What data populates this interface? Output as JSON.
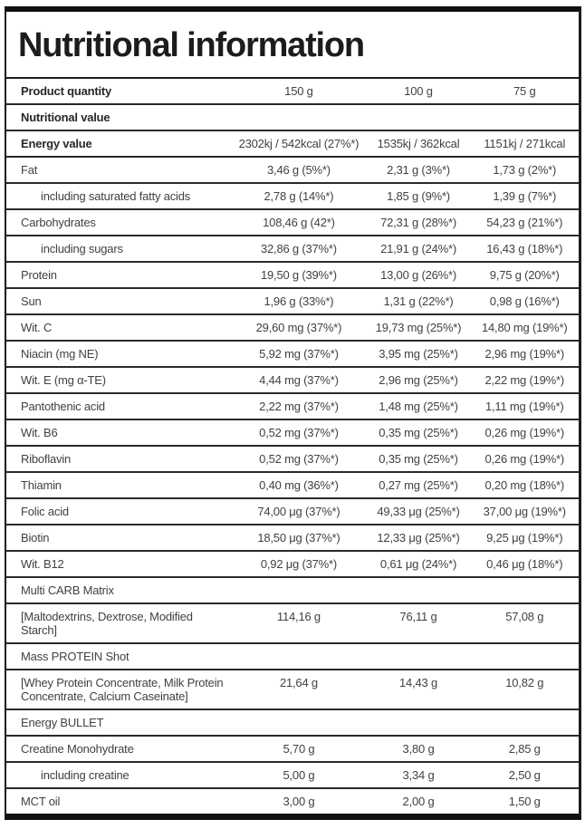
{
  "header": {
    "title": "Nutritional information"
  },
  "table": {
    "product_quantity": {
      "label": "Product quantity",
      "values": [
        "150 g",
        "100 g",
        "75 g"
      ]
    },
    "rows": [
      {
        "label": "Nutritional value",
        "bold": true,
        "values": [
          "",
          "",
          ""
        ]
      },
      {
        "label": "Energy value",
        "bold": true,
        "values": [
          "2302kj / 542kcal (27%*)",
          "1535kj / 362kcal",
          "1151kj / 271kcal"
        ]
      },
      {
        "label": "Fat",
        "values": [
          "3,46 g (5%*)",
          "2,31 g (3%*)",
          "1,73 g (2%*)"
        ]
      },
      {
        "label": "including saturated fatty acids",
        "indent": true,
        "values": [
          "2,78 g (14%*)",
          "1,85 g (9%*)",
          "1,39 g (7%*)"
        ]
      },
      {
        "label": "Carbohydrates",
        "values": [
          "108,46 g (42*)",
          "72,31 g (28%*)",
          "54,23 g (21%*)"
        ]
      },
      {
        "label": "including sugars",
        "indent": true,
        "values": [
          "32,86 g (37%*)",
          "21,91 g (24%*)",
          "16,43 g (18%*)"
        ]
      },
      {
        "label": "Protein",
        "values": [
          "19,50 g (39%*)",
          "13,00 g (26%*)",
          "9,75 g (20%*)"
        ]
      },
      {
        "label": "Sun",
        "values": [
          "1,96 g (33%*)",
          "1,31 g (22%*)",
          "0,98 g (16%*)"
        ]
      },
      {
        "label": "Wit. C",
        "values": [
          "29,60 mg (37%*)",
          "19,73 mg (25%*)",
          "14,80 mg (19%*)"
        ]
      },
      {
        "label": "Niacin (mg NE)",
        "values": [
          "5,92 mg (37%*)",
          "3,95 mg (25%*)",
          "2,96 mg (19%*)"
        ]
      },
      {
        "label": "Wit. E (mg α-TE)",
        "values": [
          "4,44 mg (37%*)",
          "2,96 mg (25%*)",
          "2,22 mg (19%*)"
        ]
      },
      {
        "label": "Pantothenic acid",
        "values": [
          "2,22 mg (37%*)",
          "1,48 mg (25%*)",
          "1,11 mg (19%*)"
        ]
      },
      {
        "label": "Wit. B6",
        "values": [
          "0,52 mg (37%*)",
          "0,35 mg (25%*)",
          "0,26 mg (19%*)"
        ]
      },
      {
        "label": "Riboflavin",
        "values": [
          "0,52 mg (37%*)",
          "0,35 mg (25%*)",
          "0,26 mg (19%*)"
        ]
      },
      {
        "label": "Thiamin",
        "values": [
          "0,40 mg (36%*)",
          "0,27 mg (25%*)",
          "0,20 mg (18%*)"
        ]
      },
      {
        "label": "Folic acid",
        "values": [
          "74,00 μg (37%*)",
          "49,33 μg (25%*)",
          "37,00 μg (19%*)"
        ]
      },
      {
        "label": "Biotin",
        "values": [
          "18,50 μg (37%*)",
          "12,33 μg (25%*)",
          "9,25 μg (19%*)"
        ]
      },
      {
        "label": "Wit. B12",
        "values": [
          "0,92 μg (37%*)",
          "0,61 μg (24%*)",
          "0,46 μg (18%*)"
        ]
      },
      {
        "label": "Multi CARB Matrix",
        "section": true,
        "values": [
          "",
          "",
          ""
        ]
      },
      {
        "label": "[Maltodextrins, Dextrose, Modified Starch]",
        "values": [
          "114,16 g",
          "76,11 g",
          "57,08 g"
        ]
      },
      {
        "label": "Mass PROTEIN Shot",
        "section": true,
        "values": [
          "",
          "",
          ""
        ]
      },
      {
        "label": "[Whey Protein Concentrate, Milk Protein Concentrate, Calcium Caseinate]",
        "values": [
          "21,64 g",
          "14,43 g",
          "10,82 g"
        ]
      },
      {
        "label": "Energy BULLET",
        "section": true,
        "values": [
          "",
          "",
          ""
        ]
      },
      {
        "label": "Creatine Monohydrate",
        "values": [
          "5,70 g",
          "3,80 g",
          "2,85 g"
        ]
      },
      {
        "label": "including creatine",
        "indent": true,
        "values": [
          "5,00 g",
          "3,34 g",
          "2,50 g"
        ]
      },
      {
        "label": "MCT oil",
        "values": [
          "3,00 g",
          "2,00 g",
          "1,50 g"
        ]
      }
    ]
  },
  "colors": {
    "bar": "#111111",
    "border": "#2a2a2a",
    "text": "#414141",
    "bold_text": "#272727",
    "background": "#ffffff"
  }
}
